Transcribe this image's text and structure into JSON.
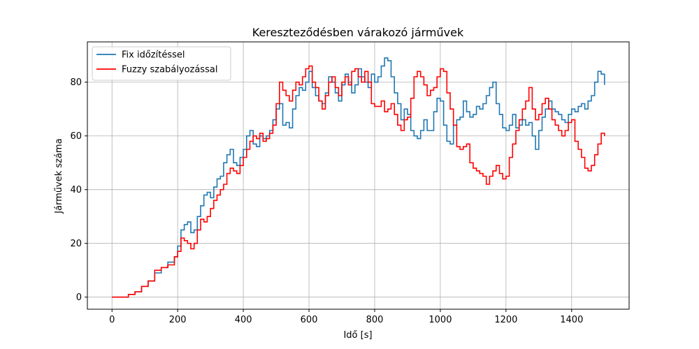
{
  "chart_data": {
    "type": "line",
    "title": "Kereszteződésben várakozó járművek",
    "xlabel": "Idő [s]",
    "ylabel": "Járművek száma",
    "xlim": [
      -75,
      1575
    ],
    "ylim": [
      -4.5,
      95
    ],
    "xticks": [
      0,
      200,
      400,
      600,
      800,
      1000,
      1200,
      1400
    ],
    "yticks": [
      0,
      20,
      40,
      60,
      80
    ],
    "grid": true,
    "legend": "top-left",
    "series": [
      {
        "name": "Fix időzítéssel",
        "color": "#1f77b4",
        "x": [
          0,
          30,
          50,
          70,
          90,
          110,
          130,
          150,
          170,
          190,
          200,
          210,
          220,
          230,
          240,
          250,
          260,
          270,
          280,
          290,
          300,
          310,
          320,
          330,
          340,
          350,
          360,
          370,
          380,
          390,
          400,
          410,
          420,
          430,
          440,
          450,
          460,
          470,
          480,
          490,
          500,
          510,
          520,
          530,
          540,
          550,
          560,
          570,
          580,
          590,
          600,
          610,
          620,
          630,
          640,
          650,
          660,
          670,
          680,
          690,
          700,
          710,
          720,
          730,
          740,
          750,
          760,
          770,
          780,
          790,
          800,
          810,
          820,
          830,
          840,
          850,
          860,
          870,
          880,
          890,
          900,
          910,
          920,
          930,
          940,
          950,
          960,
          970,
          980,
          990,
          1000,
          1010,
          1020,
          1030,
          1040,
          1050,
          1060,
          1070,
          1080,
          1090,
          1100,
          1110,
          1120,
          1130,
          1140,
          1150,
          1160,
          1170,
          1180,
          1190,
          1200,
          1210,
          1220,
          1230,
          1240,
          1250,
          1260,
          1270,
          1280,
          1290,
          1300,
          1310,
          1320,
          1330,
          1340,
          1350,
          1360,
          1370,
          1380,
          1390,
          1400,
          1410,
          1420,
          1430,
          1440,
          1450,
          1460,
          1470,
          1480,
          1490,
          1500
        ],
        "values": [
          0,
          0,
          1,
          2,
          4,
          6,
          9,
          11,
          13,
          15,
          19,
          25,
          27,
          28,
          24,
          25,
          30,
          34,
          38,
          39,
          37,
          41,
          44,
          45,
          50,
          53,
          55,
          50,
          49,
          52,
          55,
          60,
          62,
          57,
          56,
          60,
          59,
          60,
          62,
          66,
          70,
          72,
          64,
          65,
          63,
          70,
          75,
          78,
          77,
          80,
          84,
          78,
          75,
          73,
          72,
          76,
          82,
          80,
          76,
          73,
          79,
          83,
          80,
          76,
          79,
          85,
          82,
          80,
          78,
          83,
          80,
          82,
          86,
          89,
          88,
          82,
          76,
          72,
          66,
          70,
          68,
          62,
          60,
          59,
          62,
          66,
          62,
          62,
          69,
          74,
          73,
          64,
          58,
          57,
          64,
          66,
          67,
          73,
          69,
          67,
          68,
          71,
          70,
          72,
          75,
          78,
          80,
          72,
          68,
          63,
          62,
          64,
          68,
          63,
          64,
          66,
          64,
          65,
          60,
          55,
          62,
          67,
          70,
          73,
          70,
          69,
          68,
          66,
          65,
          68,
          70,
          69,
          71,
          72,
          70,
          73,
          75,
          80,
          84,
          83,
          79
        ]
      },
      {
        "name": "Fuzzy szabályozással",
        "color": "#ff0000",
        "x": [
          0,
          30,
          50,
          70,
          90,
          110,
          130,
          150,
          170,
          190,
          200,
          210,
          220,
          230,
          240,
          250,
          260,
          270,
          280,
          290,
          300,
          310,
          320,
          330,
          340,
          350,
          360,
          370,
          380,
          390,
          400,
          410,
          420,
          430,
          440,
          450,
          460,
          470,
          480,
          490,
          500,
          510,
          520,
          530,
          540,
          550,
          560,
          570,
          580,
          590,
          600,
          610,
          620,
          630,
          640,
          650,
          660,
          670,
          680,
          690,
          700,
          710,
          720,
          730,
          740,
          750,
          760,
          770,
          780,
          790,
          800,
          810,
          820,
          830,
          840,
          850,
          860,
          870,
          880,
          890,
          900,
          910,
          920,
          930,
          940,
          950,
          960,
          970,
          980,
          990,
          1000,
          1010,
          1020,
          1030,
          1040,
          1050,
          1060,
          1070,
          1080,
          1090,
          1100,
          1110,
          1120,
          1130,
          1140,
          1150,
          1160,
          1170,
          1180,
          1190,
          1200,
          1210,
          1220,
          1230,
          1240,
          1250,
          1260,
          1270,
          1280,
          1290,
          1300,
          1310,
          1320,
          1330,
          1340,
          1350,
          1360,
          1370,
          1380,
          1390,
          1400,
          1410,
          1420,
          1430,
          1440,
          1450,
          1460,
          1470,
          1480,
          1490,
          1500
        ],
        "values": [
          0,
          0,
          1,
          2,
          4,
          6,
          10,
          11,
          12,
          15,
          17,
          22,
          21,
          20,
          18,
          20,
          25,
          29,
          28,
          30,
          33,
          36,
          38,
          40,
          42,
          46,
          48,
          47,
          46,
          49,
          52,
          55,
          58,
          60,
          59,
          61,
          58,
          59,
          61,
          64,
          72,
          80,
          77,
          75,
          73,
          77,
          80,
          79,
          82,
          85,
          86,
          80,
          78,
          73,
          70,
          75,
          80,
          82,
          78,
          75,
          80,
          82,
          79,
          84,
          85,
          82,
          80,
          84,
          80,
          72,
          71,
          71,
          73,
          69,
          70,
          72,
          68,
          64,
          62,
          66,
          67,
          74,
          82,
          84,
          82,
          79,
          75,
          77,
          78,
          82,
          85,
          84,
          76,
          70,
          64,
          56,
          55,
          56,
          57,
          50,
          48,
          47,
          46,
          45,
          42,
          45,
          47,
          49,
          46,
          44,
          45,
          52,
          57,
          62,
          66,
          70,
          73,
          78,
          70,
          66,
          68,
          72,
          74,
          70,
          66,
          64,
          62,
          60,
          62,
          65,
          66,
          58,
          55,
          52,
          48,
          47,
          49,
          53,
          57,
          61,
          60
        ]
      }
    ]
  }
}
